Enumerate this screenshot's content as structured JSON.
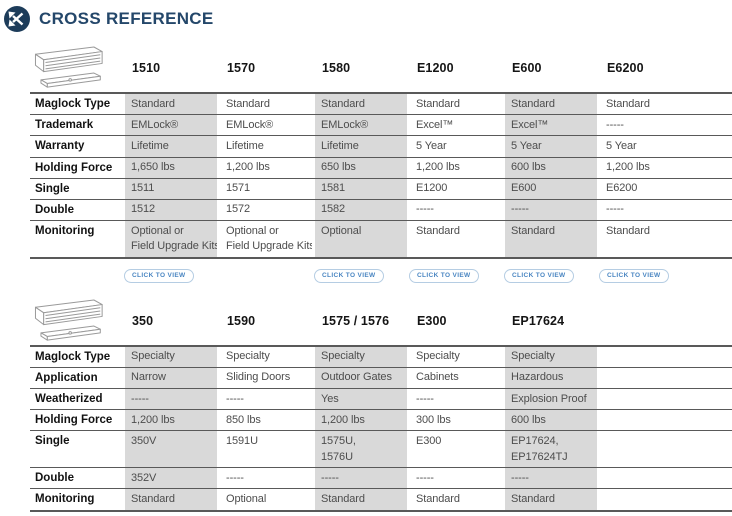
{
  "header": {
    "title": "CROSS REFERENCE",
    "icon": "cross-reference-icon"
  },
  "button_label": "CLICK TO VIEW",
  "colors": {
    "title_navy": "#24476a",
    "icon_circle_navy": "#1d3c5a",
    "shaded_column": "#d9d9d9",
    "row_border": "#595959",
    "cell_text": "#4d4d4d",
    "button_text": "#4a86c2",
    "button_border": "#b5cde3"
  },
  "tables": [
    {
      "name": "standard-maglocks",
      "product_icon": "maglock-line-drawing-icon",
      "columns": [
        {
          "model": "1510",
          "shaded": true,
          "has_button": true
        },
        {
          "model": "1570",
          "shaded": false,
          "has_button": false
        },
        {
          "model": "1580",
          "shaded": true,
          "has_button": true
        },
        {
          "model": "E1200",
          "shaded": false,
          "has_button": true
        },
        {
          "model": "E600",
          "shaded": true,
          "has_button": true
        },
        {
          "model": "E6200",
          "shaded": false,
          "has_button": true
        }
      ],
      "rows": [
        {
          "label": "Maglock Type",
          "values": [
            "Standard",
            "Standard",
            "Standard",
            "Standard",
            "Standard",
            "Standard"
          ]
        },
        {
          "label": "Trademark",
          "values": [
            "EMLock®",
            "EMLock®",
            "EMLock®",
            "Excel™",
            "Excel™",
            "-----"
          ]
        },
        {
          "label": "Warranty",
          "values": [
            "Lifetime",
            "Lifetime",
            "Lifetime",
            "5 Year",
            "5 Year",
            "5 Year"
          ]
        },
        {
          "label": "Holding Force",
          "values": [
            "1,650 lbs",
            "1,200 lbs",
            "650 lbs",
            "1,200 lbs",
            "600 lbs",
            "1,200 lbs"
          ]
        },
        {
          "label": "Single",
          "values": [
            "1511",
            "1571",
            "1581",
            "E1200",
            "E600",
            "E6200"
          ]
        },
        {
          "label": "Double",
          "values": [
            "1512",
            "1572",
            "1582",
            "-----",
            "-----",
            "-----"
          ]
        },
        {
          "label": "Monitoring",
          "values": [
            "Optional or\nField Upgrade Kits",
            "Optional or\nField Upgrade Kits",
            "Optional",
            "Standard",
            "Standard",
            "Standard"
          ]
        }
      ]
    },
    {
      "name": "specialty-maglocks",
      "product_icon": "maglock-line-drawing-icon",
      "columns": [
        {
          "model": "350",
          "shaded": true,
          "has_button": true
        },
        {
          "model": "1590",
          "shaded": false,
          "has_button": true
        },
        {
          "model": "1575 / 1576",
          "shaded": true,
          "has_button": true
        },
        {
          "model": "E300",
          "shaded": false,
          "has_button": true
        },
        {
          "model": "EP17624",
          "shaded": true,
          "has_button": true
        }
      ],
      "rows": [
        {
          "label": "Maglock Type",
          "values": [
            "Specialty",
            "Specialty",
            "Specialty",
            "Specialty",
            "Specialty"
          ]
        },
        {
          "label": "Application",
          "values": [
            "Narrow",
            "Sliding Doors",
            "Outdoor Gates",
            "Cabinets",
            "Hazardous"
          ]
        },
        {
          "label": "Weatherized",
          "values": [
            "-----",
            "-----",
            "Yes",
            "-----",
            "Explosion Proof"
          ]
        },
        {
          "label": "Holding Force",
          "values": [
            "1,200 lbs",
            "850 lbs",
            "1,200 lbs",
            "300 lbs",
            "600 lbs"
          ]
        },
        {
          "label": "Single",
          "values": [
            "350V",
            "1591U",
            "1575U,\n1576U",
            "E300",
            "EP17624,\nEP17624TJ"
          ]
        },
        {
          "label": "Double",
          "values": [
            "352V",
            "-----",
            "-----",
            "-----",
            "-----"
          ]
        },
        {
          "label": "Monitoring",
          "values": [
            "Standard",
            "Optional",
            "Standard",
            "Standard",
            "Standard"
          ]
        }
      ]
    }
  ]
}
